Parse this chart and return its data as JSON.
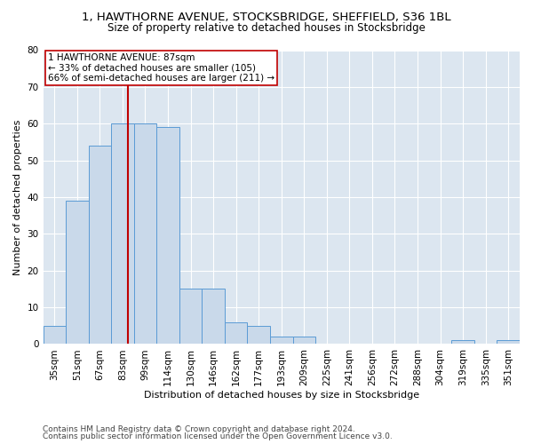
{
  "title1": "1, HAWTHORNE AVENUE, STOCKSBRIDGE, SHEFFIELD, S36 1BL",
  "title2": "Size of property relative to detached houses in Stocksbridge",
  "xlabel": "Distribution of detached houses by size in Stocksbridge",
  "ylabel": "Number of detached properties",
  "categories": [
    "35sqm",
    "51sqm",
    "67sqm",
    "83sqm",
    "99sqm",
    "114sqm",
    "130sqm",
    "146sqm",
    "162sqm",
    "177sqm",
    "193sqm",
    "209sqm",
    "225sqm",
    "241sqm",
    "256sqm",
    "272sqm",
    "288sqm",
    "304sqm",
    "319sqm",
    "335sqm",
    "351sqm"
  ],
  "values": [
    5,
    39,
    54,
    60,
    60,
    59,
    15,
    15,
    6,
    5,
    2,
    2,
    0,
    0,
    0,
    0,
    0,
    0,
    1,
    0,
    1
  ],
  "bar_color": "#c9d9ea",
  "bar_edgecolor": "#5b9bd5",
  "vline_color": "#c00000",
  "annotation_line1": "1 HAWTHORNE AVENUE: 87sqm",
  "annotation_line2": "← 33% of detached houses are smaller (105)",
  "annotation_line3": "66% of semi-detached houses are larger (211) →",
  "annotation_box_color": "#c00000",
  "ylim": [
    0,
    80
  ],
  "yticks": [
    0,
    10,
    20,
    30,
    40,
    50,
    60,
    70,
    80
  ],
  "footer1": "Contains HM Land Registry data © Crown copyright and database right 2024.",
  "footer2": "Contains public sector information licensed under the Open Government Licence v3.0.",
  "fig_background": "#ffffff",
  "plot_background": "#dce6f0",
  "grid_color": "#ffffff",
  "title1_fontsize": 9.5,
  "title2_fontsize": 8.5,
  "xlabel_fontsize": 8,
  "ylabel_fontsize": 8,
  "tick_fontsize": 7.5,
  "annotation_fontsize": 7.5,
  "footer_fontsize": 6.5
}
